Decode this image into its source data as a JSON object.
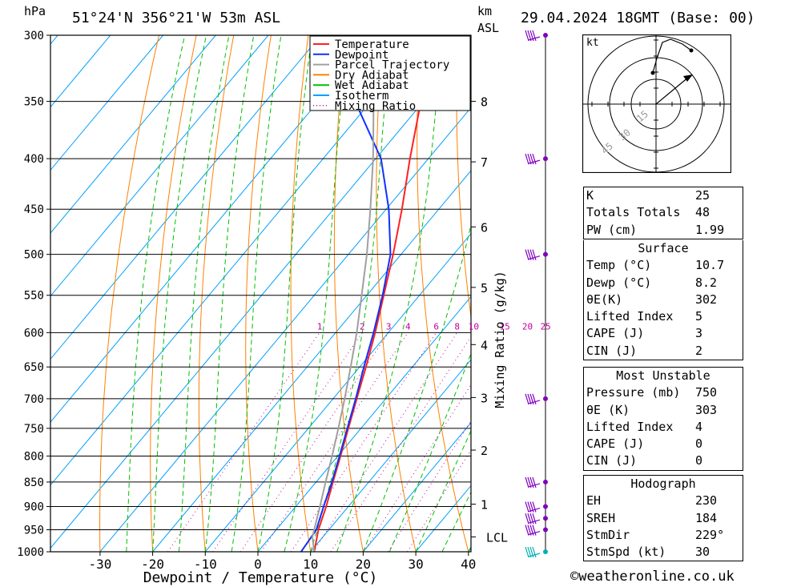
{
  "header": {
    "pressure_unit": "hPa",
    "location": "51°24'N 356°21'W 53m ASL",
    "km_unit": "km",
    "asl_unit": "ASL",
    "datetime": "29.04.2024 18GMT (Base: 00)"
  },
  "chart_data": {
    "type": "line",
    "xlabel": "Dewpoint / Temperature (°C)",
    "ylabel": "hPa",
    "mixing_ratio_axis_label": "Mixing Ratio (g/kg)",
    "x_ticks": [
      -30,
      -20,
      -10,
      0,
      10,
      20,
      30,
      40
    ],
    "pressure_levels": [
      300,
      350,
      400,
      450,
      500,
      550,
      600,
      650,
      700,
      750,
      800,
      850,
      900,
      950,
      1000
    ],
    "height_ticks_km": [
      {
        "label": "8",
        "p": 350
      },
      {
        "label": "7",
        "p": 403
      },
      {
        "label": "6",
        "p": 469
      },
      {
        "label": "5",
        "p": 540
      },
      {
        "label": "4",
        "p": 617
      },
      {
        "label": "3",
        "p": 698
      },
      {
        "label": "2",
        "p": 789
      },
      {
        "label": "1",
        "p": 895
      },
      {
        "label": "LCL",
        "p": 966
      }
    ],
    "mixing_ratio_labels": [
      "1",
      "2",
      "3",
      "4",
      "6",
      "8",
      "10",
      "15",
      "20",
      "25"
    ],
    "legend": {
      "placement": "top-right",
      "entries": [
        {
          "name": "Temperature",
          "color": "#ff2020",
          "style": "solid"
        },
        {
          "name": "Dewpoint",
          "color": "#1030ff",
          "style": "solid"
        },
        {
          "name": "Parcel Trajectory",
          "color": "#a0a0a0",
          "style": "solid"
        },
        {
          "name": "Dry Adiabat",
          "color": "#ff8000",
          "style": "solid"
        },
        {
          "name": "Wet Adiabat",
          "color": "#00c000",
          "style": "solid"
        },
        {
          "name": "Isotherm",
          "color": "#00a0ff",
          "style": "solid"
        },
        {
          "name": "Mixing Ratio",
          "color": "#c000a0",
          "style": "dotted"
        }
      ]
    },
    "series": [
      {
        "name": "Temperature",
        "color": "#ff2020",
        "points": [
          [
            1000,
            10.7
          ],
          [
            950,
            8.0
          ],
          [
            900,
            5.8
          ],
          [
            850,
            3.2
          ],
          [
            800,
            0.5
          ],
          [
            750,
            -2.4
          ],
          [
            700,
            -5.5
          ],
          [
            650,
            -8.8
          ],
          [
            600,
            -12.5
          ],
          [
            550,
            -16.8
          ],
          [
            500,
            -21.5
          ],
          [
            450,
            -27.0
          ],
          [
            400,
            -33.5
          ],
          [
            350,
            -40.5
          ],
          [
            300,
            -48.5
          ]
        ]
      },
      {
        "name": "Dewpoint",
        "color": "#1030ff",
        "points": [
          [
            1000,
            8.2
          ],
          [
            950,
            7.6
          ],
          [
            900,
            5.3
          ],
          [
            850,
            3.0
          ],
          [
            800,
            0.3
          ],
          [
            750,
            -2.6
          ],
          [
            700,
            -5.7
          ],
          [
            650,
            -9.2
          ],
          [
            600,
            -12.8
          ],
          [
            550,
            -17.0
          ],
          [
            500,
            -22.0
          ],
          [
            450,
            -29.5
          ],
          [
            400,
            -39.0
          ],
          [
            350,
            -53.0
          ],
          [
            300,
            -67.0
          ]
        ]
      },
      {
        "name": "Parcel Trajectory",
        "color": "#a0a0a0",
        "points": [
          [
            1000,
            10.7
          ],
          [
            966,
            8.0
          ],
          [
            900,
            4.6
          ],
          [
            850,
            1.8
          ],
          [
            800,
            -1.1
          ],
          [
            750,
            -4.3
          ],
          [
            700,
            -7.8
          ],
          [
            650,
            -11.7
          ],
          [
            600,
            -16.0
          ],
          [
            550,
            -21.0
          ],
          [
            500,
            -26.5
          ],
          [
            450,
            -33.0
          ],
          [
            400,
            -40.5
          ],
          [
            350,
            -49.5
          ],
          [
            300,
            -58.5
          ]
        ]
      }
    ],
    "wind_barb_levels": [
      300,
      400,
      500,
      700,
      850,
      900,
      925,
      950,
      1000
    ]
  },
  "hodograph": {
    "unit_label": "kt",
    "ring_labels": [
      "15",
      "30",
      "45"
    ]
  },
  "indices": {
    "general": [
      {
        "label": "K",
        "value": "25"
      },
      {
        "label": "Totals Totals",
        "value": "48"
      },
      {
        "label": "PW (cm)",
        "value": "1.99"
      }
    ],
    "surface_title": "Surface",
    "surface": [
      {
        "label": "Temp (°C)",
        "value": "10.7"
      },
      {
        "label": "Dewp (°C)",
        "value": "8.2"
      },
      {
        "label": "θE(K)",
        "value": "302"
      },
      {
        "label": "Lifted Index",
        "value": "5"
      },
      {
        "label": "CAPE (J)",
        "value": "3"
      },
      {
        "label": "CIN (J)",
        "value": "2"
      }
    ],
    "most_unstable_title": "Most Unstable",
    "most_unstable": [
      {
        "label": "Pressure (mb)",
        "value": "750"
      },
      {
        "label": "θE (K)",
        "value": "303"
      },
      {
        "label": "Lifted Index",
        "value": "4"
      },
      {
        "label": "CAPE (J)",
        "value": "0"
      },
      {
        "label": "CIN (J)",
        "value": "0"
      }
    ],
    "hodograph_title": "Hodograph",
    "hodograph": [
      {
        "label": "EH",
        "value": "230"
      },
      {
        "label": "SREH",
        "value": "184"
      },
      {
        "label": "StmDir",
        "value": "229°"
      },
      {
        "label": "StmSpd (kt)",
        "value": "30"
      }
    ]
  },
  "footer": {
    "credit": "©weatheronline.co.uk"
  }
}
